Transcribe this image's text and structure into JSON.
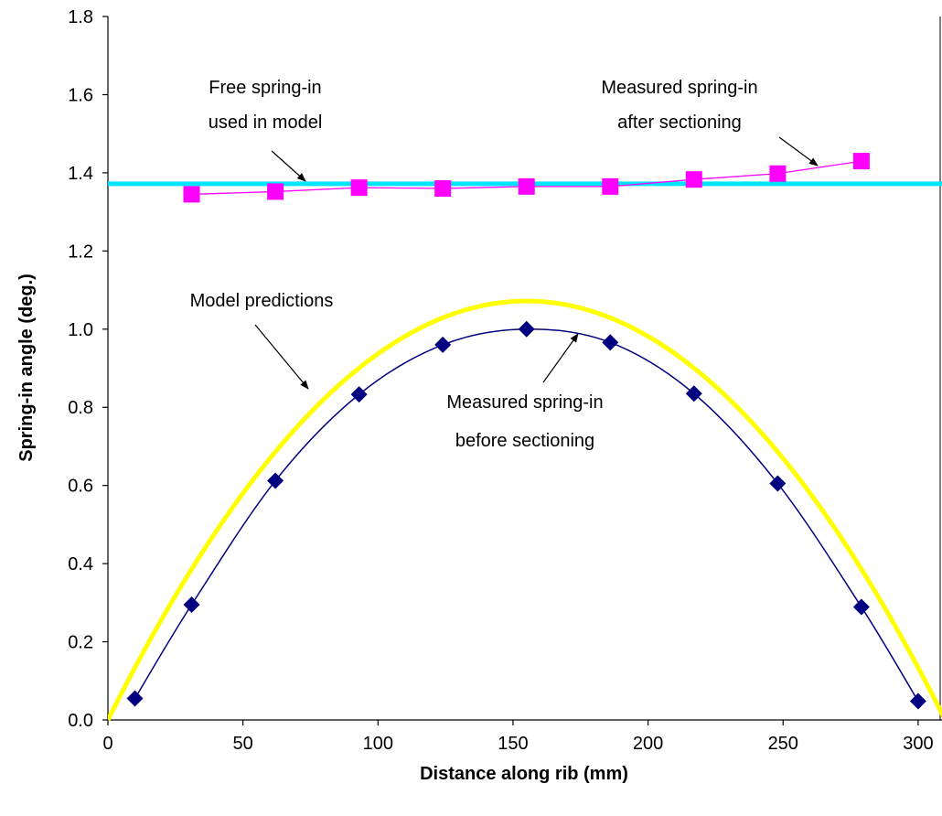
{
  "chart_data": {
    "type": "scatter",
    "title": "",
    "xlabel": "Distance along rib (mm)",
    "ylabel": "Spring-in angle (deg.)",
    "xlim": [
      0,
      310
    ],
    "ylim": [
      0,
      1.8
    ],
    "xticks": [
      "0",
      "50",
      "100",
      "150",
      "200",
      "250",
      "300"
    ],
    "yticks": [
      "0.0",
      "0.2",
      "0.4",
      "0.6",
      "0.8",
      "1.0",
      "1.2",
      "1.4",
      "1.6",
      "1.8"
    ],
    "grid": false,
    "legend": "none",
    "series": [
      {
        "marker": "square",
        "line": "thin",
        "color": "#ff00ff",
        "x": [
          31,
          62,
          93,
          124,
          155,
          186,
          217,
          248,
          279
        ],
        "y": [
          1.345,
          1.352,
          1.362,
          1.36,
          1.365,
          1.365,
          1.383,
          1.398,
          1.43
        ]
      },
      {
        "marker": "diamond",
        "line": "smooth",
        "color": "#000080",
        "x": [
          10,
          31,
          62,
          93,
          124,
          155,
          186,
          217,
          248,
          279,
          300
        ],
        "y": [
          0.055,
          0.295,
          0.612,
          0.833,
          0.96,
          1.0,
          0.966,
          0.835,
          0.605,
          0.289,
          0.048
        ]
      },
      {
        "marker": "none",
        "line": "thick-curve",
        "color": "#ffff00",
        "x": [
          0,
          155,
          310
        ],
        "y": [
          0.0,
          1.072,
          0.0
        ]
      },
      {
        "marker": "none",
        "line": "thick-horizontal",
        "color": "#00e5ff",
        "x": [
          0,
          310
        ],
        "y": [
          1.372,
          1.372
        ]
      }
    ],
    "annotations": [
      {
        "lines": [
          "Free spring-in",
          "used in model"
        ]
      },
      {
        "lines": [
          "Measured spring-in",
          "after sectioning"
        ]
      },
      {
        "lines": [
          "Model predictions"
        ]
      },
      {
        "lines": [
          "Measured spring-in",
          "before sectioning"
        ]
      }
    ]
  }
}
